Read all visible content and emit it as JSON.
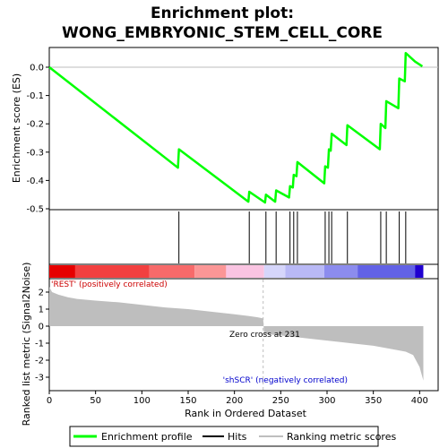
{
  "title_line1": "Enrichment plot:",
  "title_line2": "WONG_EMBRYONIC_STEM_CELL_CORE",
  "colors": {
    "enrichment": "#00ff00",
    "hits": "#000000",
    "metric_fill": "#bebebe",
    "zero_line": "#bebebe",
    "pos_label": "#cc0000",
    "neg_label": "#0000cc"
  },
  "chart_data": [
    {
      "type": "line",
      "name": "enrichment",
      "ylabel": "Enrichment score (ES)",
      "ylim": [
        -0.5,
        0.05
      ],
      "yticks": [
        0.0,
        -0.1,
        -0.2,
        -0.3,
        -0.4,
        -0.5
      ],
      "ytick_labels": [
        "0.0",
        "-0.1",
        "-0.2",
        "-0.3",
        "-0.4",
        "-0.5"
      ],
      "xlim": [
        0,
        420
      ],
      "grid": false,
      "zero_line": 0,
      "x": [
        0,
        139,
        140,
        215,
        216,
        233,
        234,
        244,
        245,
        259,
        260,
        263,
        264,
        267,
        268,
        297,
        298,
        301,
        302,
        304,
        305,
        321,
        322,
        357,
        358,
        363,
        364,
        377,
        378,
        384,
        385,
        395,
        403
      ],
      "values": [
        0.0,
        -0.355,
        -0.29,
        -0.475,
        -0.44,
        -0.478,
        -0.45,
        -0.475,
        -0.435,
        -0.46,
        -0.42,
        -0.425,
        -0.38,
        -0.385,
        -0.335,
        -0.41,
        -0.35,
        -0.355,
        -0.29,
        -0.295,
        -0.235,
        -0.275,
        -0.205,
        -0.29,
        -0.2,
        -0.215,
        -0.12,
        -0.145,
        -0.04,
        -0.05,
        0.05,
        0.02,
        0.003
      ]
    },
    {
      "type": "bar",
      "name": "hits",
      "x": [
        140,
        216,
        234,
        245,
        260,
        264,
        268,
        298,
        302,
        305,
        322,
        358,
        364,
        378,
        385
      ]
    },
    {
      "type": "area",
      "name": "ranked-metric",
      "ylabel": "Ranked list metric (Signal2Noise)",
      "xlabel": "Rank in Ordered Dataset",
      "xlim": [
        0,
        420
      ],
      "ylim": [
        -3.5,
        2.5
      ],
      "xticks": [
        0,
        50,
        100,
        150,
        200,
        250,
        300,
        350,
        400
      ],
      "xtick_labels": [
        "0",
        "50",
        "100",
        "150",
        "200",
        "250",
        "300",
        "350",
        "400"
      ],
      "yticks": [
        2,
        1,
        0,
        -1,
        -2,
        -3
      ],
      "ytick_labels": [
        "2",
        "1",
        "0",
        "-1",
        "-2",
        "-3"
      ],
      "x": [
        0,
        3,
        10,
        20,
        30,
        50,
        75,
        100,
        125,
        150,
        175,
        200,
        215,
        225,
        231,
        232,
        250,
        275,
        300,
        325,
        350,
        370,
        385,
        393,
        397,
        400,
        402,
        404
      ],
      "values": [
        2.3,
        2.0,
        1.85,
        1.7,
        1.6,
        1.5,
        1.4,
        1.25,
        1.1,
        1.0,
        0.85,
        0.7,
        0.6,
        0.52,
        0.45,
        -0.45,
        -0.55,
        -0.7,
        -0.85,
        -1.0,
        -1.15,
        -1.35,
        -1.5,
        -1.7,
        -2.1,
        -2.4,
        -2.8,
        -3.2
      ]
    }
  ],
  "colorbar": [
    {
      "start": 0,
      "end": 28,
      "color": "#e60000"
    },
    {
      "start": 28,
      "end": 108,
      "color": "#f24040"
    },
    {
      "start": 108,
      "end": 157,
      "color": "#f76a6a"
    },
    {
      "start": 157,
      "end": 191,
      "color": "#fb9696"
    },
    {
      "start": 191,
      "end": 232,
      "color": "#fac4e2"
    },
    {
      "start": 232,
      "end": 255,
      "color": "#d6d6fb"
    },
    {
      "start": 255,
      "end": 297,
      "color": "#b9b9f6"
    },
    {
      "start": 297,
      "end": 333,
      "color": "#8c8cee"
    },
    {
      "start": 333,
      "end": 395,
      "color": "#6262e6"
    },
    {
      "start": 395,
      "end": 404,
      "color": "#1f00d0"
    }
  ],
  "annotations": {
    "positive": "'REST' (positively correlated)",
    "negative": "'shSCR' (negatively correlated)",
    "zero_cross": "Zero cross at 231",
    "zero_cross_x": 231
  },
  "legend": {
    "placement": "bottom",
    "items": [
      {
        "label": "Enrichment profile",
        "kind": "line",
        "color": "#00ff00"
      },
      {
        "label": "Hits",
        "kind": "line",
        "color": "#000000"
      },
      {
        "label": "Ranking metric scores",
        "kind": "line",
        "color": "#bebebe"
      }
    ]
  }
}
